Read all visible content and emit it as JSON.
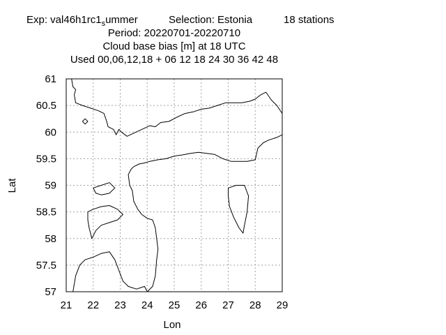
{
  "header": {
    "exp_prefix": "Exp: val46h1rc1",
    "exp_subscript": "s",
    "exp_suffix": "ummer",
    "selection": "Selection: Estonia",
    "stations": "18 stations",
    "period": "Period: 20220701-20220710",
    "parameter": "Cloud base bias [m] at  18 UTC",
    "used": "Used  00,06,12,18  + 06 12 18 24 30 36 42 48"
  },
  "chart_data": {
    "type": "map",
    "xlabel": "Lon",
    "ylabel": "Lat",
    "xlim": [
      21,
      29
    ],
    "ylim": [
      57,
      61
    ],
    "xticks": [
      "21",
      "22",
      "23",
      "24",
      "25",
      "26",
      "27",
      "28",
      "29"
    ],
    "yticks": [
      "57",
      "57.5",
      "58",
      "58.5",
      "59",
      "59.5",
      "60",
      "60.5",
      "61"
    ],
    "grid": true,
    "legend": "none",
    "coastlines": [
      {
        "name": "finland-coast",
        "points": [
          [
            21.2,
            61.0
          ],
          [
            21.25,
            60.85
          ],
          [
            21.35,
            60.8
          ],
          [
            21.3,
            60.7
          ],
          [
            21.35,
            60.55
          ],
          [
            21.6,
            60.5
          ],
          [
            21.9,
            60.45
          ],
          [
            22.2,
            60.4
          ],
          [
            22.4,
            60.35
          ],
          [
            22.5,
            60.2
          ],
          [
            22.55,
            60.1
          ],
          [
            22.75,
            60.05
          ],
          [
            22.85,
            59.95
          ],
          [
            22.95,
            60.05
          ],
          [
            23.05,
            60.0
          ],
          [
            23.25,
            59.92
          ],
          [
            23.5,
            59.98
          ],
          [
            23.8,
            60.05
          ],
          [
            24.1,
            60.12
          ],
          [
            24.3,
            60.1
          ],
          [
            24.5,
            60.18
          ],
          [
            24.8,
            60.2
          ],
          [
            25.1,
            60.28
          ],
          [
            25.4,
            60.35
          ],
          [
            25.7,
            60.38
          ],
          [
            26.0,
            60.43
          ],
          [
            26.3,
            60.45
          ],
          [
            26.6,
            60.5
          ],
          [
            26.9,
            60.55
          ],
          [
            27.2,
            60.55
          ],
          [
            27.5,
            60.55
          ],
          [
            27.8,
            60.58
          ],
          [
            28.0,
            60.62
          ],
          [
            28.2,
            60.7
          ],
          [
            28.4,
            60.75
          ],
          [
            28.6,
            60.6
          ],
          [
            28.8,
            60.5
          ],
          [
            29.0,
            60.35
          ]
        ]
      },
      {
        "name": "estonia-north-coast",
        "points": [
          [
            23.4,
            59.3
          ],
          [
            23.5,
            59.35
          ],
          [
            23.7,
            59.4
          ],
          [
            23.9,
            59.42
          ],
          [
            24.1,
            59.45
          ],
          [
            24.4,
            59.48
          ],
          [
            24.7,
            59.5
          ],
          [
            25.0,
            59.55
          ],
          [
            25.3,
            59.57
          ],
          [
            25.6,
            59.6
          ],
          [
            25.9,
            59.62
          ],
          [
            26.2,
            59.6
          ],
          [
            26.5,
            59.58
          ],
          [
            26.8,
            59.5
          ],
          [
            27.1,
            59.45
          ],
          [
            27.4,
            59.45
          ],
          [
            27.7,
            59.45
          ],
          [
            28.0,
            59.48
          ],
          [
            28.1,
            59.7
          ],
          [
            28.3,
            59.8
          ],
          [
            28.5,
            59.85
          ],
          [
            28.8,
            59.9
          ],
          [
            29.0,
            59.95
          ]
        ]
      },
      {
        "name": "estonia-west-coast",
        "points": [
          [
            23.4,
            59.3
          ],
          [
            23.3,
            59.2
          ],
          [
            23.35,
            59.0
          ],
          [
            23.45,
            58.9
          ],
          [
            23.5,
            58.7
          ],
          [
            23.65,
            58.55
          ],
          [
            23.8,
            58.45
          ],
          [
            24.0,
            58.38
          ],
          [
            24.2,
            58.35
          ],
          [
            24.3,
            58.2
          ],
          [
            24.35,
            58.0
          ],
          [
            24.4,
            57.8
          ],
          [
            24.35,
            57.6
          ],
          [
            24.3,
            57.3
          ],
          [
            24.2,
            57.1
          ],
          [
            24.0,
            57.0
          ]
        ]
      },
      {
        "name": "latvia-coast",
        "points": [
          [
            21.25,
            57.0
          ],
          [
            21.35,
            57.3
          ],
          [
            21.5,
            57.5
          ],
          [
            21.7,
            57.6
          ],
          [
            22.0,
            57.65
          ],
          [
            22.3,
            57.72
          ],
          [
            22.6,
            57.75
          ],
          [
            22.8,
            57.6
          ],
          [
            22.95,
            57.4
          ],
          [
            23.1,
            57.2
          ],
          [
            23.3,
            57.1
          ],
          [
            23.6,
            57.05
          ],
          [
            23.9,
            57.1
          ],
          [
            24.0,
            57.0
          ]
        ]
      },
      {
        "name": "saaremaa-island",
        "points": [
          [
            21.8,
            58.5
          ],
          [
            22.0,
            58.55
          ],
          [
            22.3,
            58.6
          ],
          [
            22.6,
            58.62
          ],
          [
            22.9,
            58.55
          ],
          [
            23.1,
            58.45
          ],
          [
            22.9,
            58.35
          ],
          [
            22.6,
            58.3
          ],
          [
            22.3,
            58.25
          ],
          [
            22.1,
            58.15
          ],
          [
            21.95,
            58.0
          ],
          [
            21.85,
            58.2
          ],
          [
            21.8,
            58.35
          ],
          [
            21.8,
            58.5
          ]
        ]
      },
      {
        "name": "hiiumaa-island",
        "points": [
          [
            22.0,
            58.95
          ],
          [
            22.3,
            59.0
          ],
          [
            22.6,
            59.05
          ],
          [
            22.8,
            58.95
          ],
          [
            22.6,
            58.85
          ],
          [
            22.3,
            58.82
          ],
          [
            22.1,
            58.85
          ],
          [
            22.0,
            58.95
          ]
        ]
      },
      {
        "name": "lake-peipus",
        "points": [
          [
            27.0,
            58.95
          ],
          [
            27.3,
            59.0
          ],
          [
            27.6,
            59.0
          ],
          [
            27.75,
            58.8
          ],
          [
            27.7,
            58.5
          ],
          [
            27.6,
            58.25
          ],
          [
            27.55,
            58.1
          ],
          [
            27.4,
            58.2
          ],
          [
            27.2,
            58.4
          ],
          [
            27.05,
            58.6
          ],
          [
            27.0,
            58.8
          ],
          [
            27.0,
            58.95
          ]
        ]
      },
      {
        "name": "aland-islet",
        "points": [
          [
            21.6,
            60.2
          ],
          [
            21.7,
            60.25
          ],
          [
            21.8,
            60.2
          ],
          [
            21.7,
            60.15
          ],
          [
            21.6,
            60.2
          ]
        ]
      }
    ]
  }
}
